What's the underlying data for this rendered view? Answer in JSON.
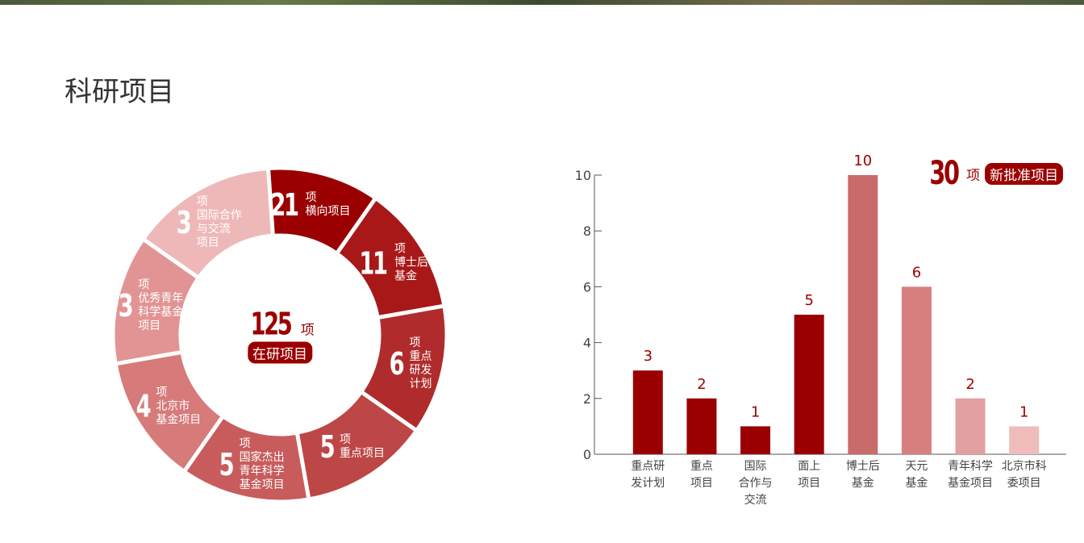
{
  "title": "科研项目",
  "ring": {
    "total": 125,
    "total_unit": "项",
    "total_label": "在研项目",
    "items": [
      {
        "count": 21,
        "unit": "项",
        "label": "横向项目",
        "color": "#9b0000"
      },
      {
        "count": 11,
        "unit": "项",
        "label": "博士后\n基金",
        "color": "#a81818"
      },
      {
        "count": 6,
        "unit": "项",
        "label": "重点\n研发\n计划",
        "color": "#b02c2c"
      },
      {
        "count": 5,
        "unit": "项",
        "label": "重点项目",
        "color": "#bd4646"
      },
      {
        "count": 5,
        "unit": "项",
        "label": "国家杰出\n青年科学\n基金项目",
        "color": "#c85c5c"
      },
      {
        "count": 4,
        "unit": "项",
        "label": "北京市\n基金项目",
        "color": "#d67a7a"
      },
      {
        "count": 3,
        "unit": "项",
        "label": "优秀青年\n科学基金\n项目",
        "color": "#e29494"
      },
      {
        "count": 3,
        "unit": "项",
        "label": "国际合作\n与交流\n项目",
        "color": "#efb8b8"
      }
    ]
  },
  "chart_data": {
    "type": "bar",
    "categories": [
      "重点研\n发计划",
      "重点\n项目",
      "国际\n合作与\n交流",
      "面上\n项目",
      "博士后\n基金",
      "天元\n基金",
      "青年科学\n基金项目",
      "北京市科\n委项目"
    ],
    "values": [
      3,
      2,
      1,
      5,
      10,
      6,
      2,
      1
    ],
    "colors": [
      "#9b0000",
      "#9b0000",
      "#9b0000",
      "#9b0000",
      "#c96b6b",
      "#d77f7f",
      "#e3a0a0",
      "#efbcbc"
    ],
    "ylim": [
      0,
      10
    ],
    "yticks": [
      0,
      2,
      4,
      6,
      8,
      10
    ],
    "grid": false,
    "annotation": {
      "total": 30,
      "unit": "项",
      "label": "新批准项目"
    }
  }
}
